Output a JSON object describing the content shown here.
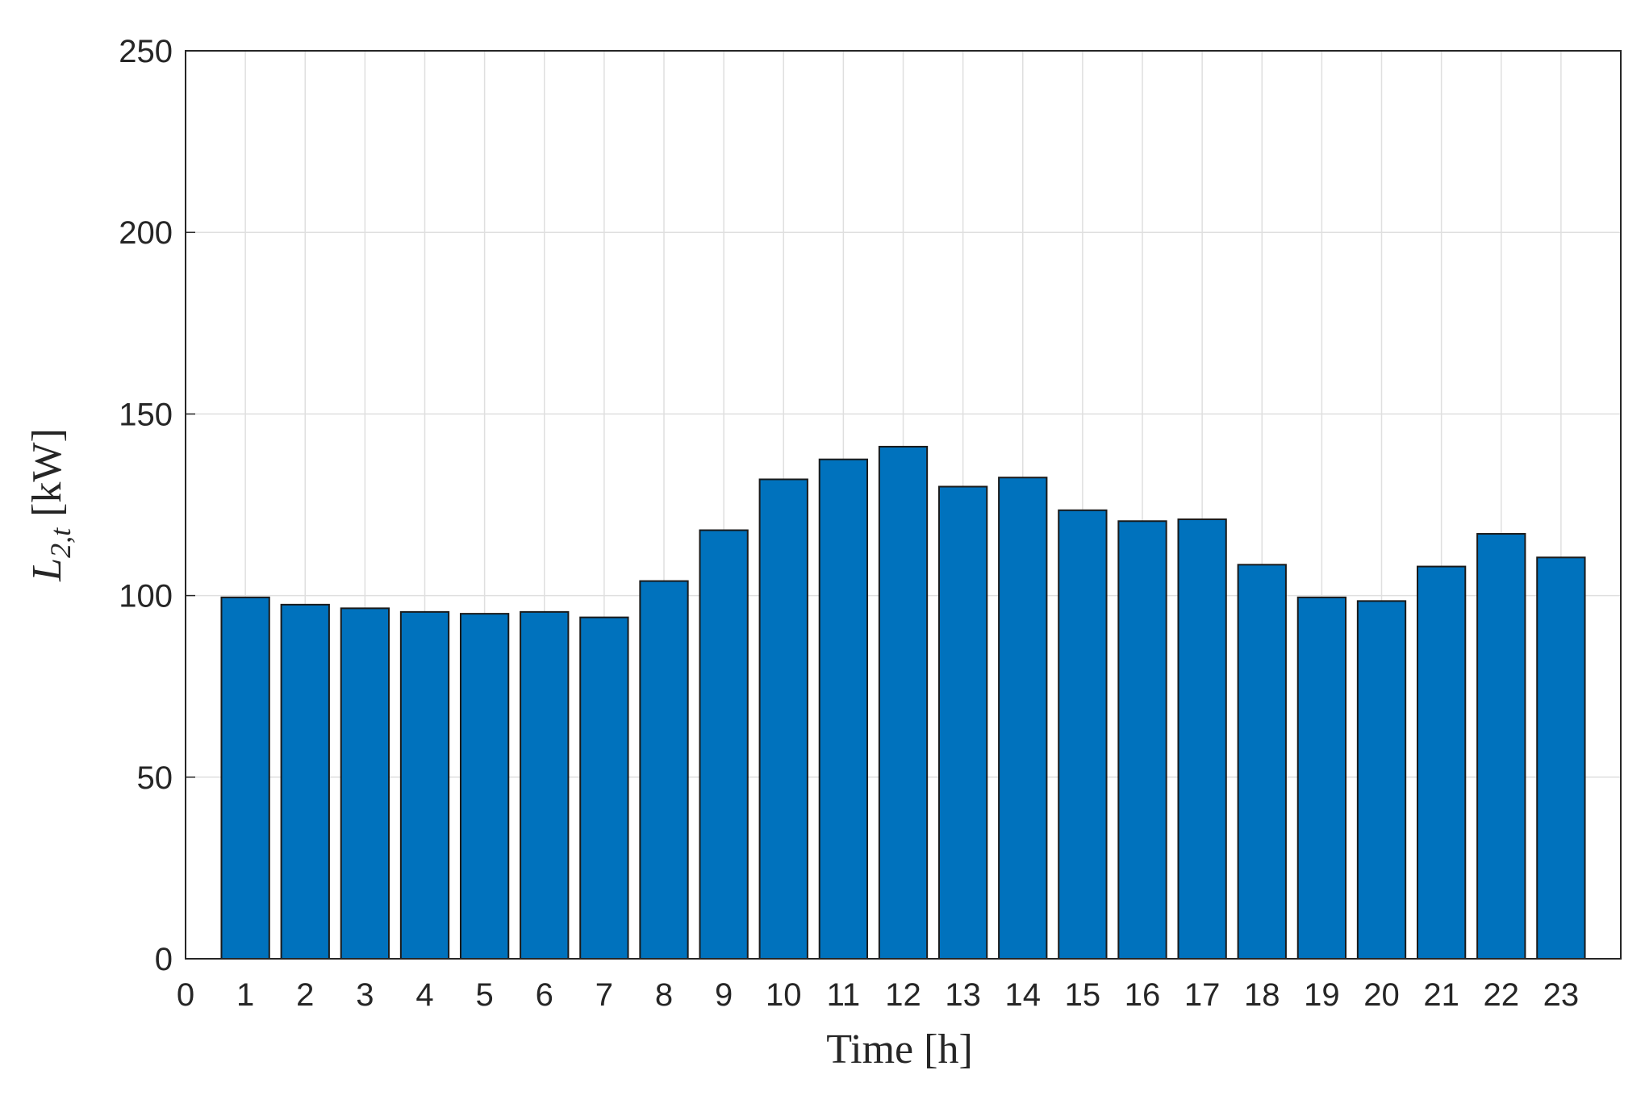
{
  "chart_data": {
    "type": "bar",
    "x": [
      1,
      2,
      3,
      4,
      5,
      6,
      7,
      8,
      9,
      10,
      11,
      12,
      13,
      14,
      15,
      16,
      17,
      18,
      19,
      20,
      21,
      22,
      23
    ],
    "values": [
      99.5,
      97.5,
      96.5,
      95.5,
      95,
      95.5,
      94,
      104,
      118,
      132,
      137.5,
      141,
      130,
      132.5,
      123.5,
      120.5,
      121,
      108.5,
      99.5,
      98.5,
      108,
      117,
      110.5
    ],
    "color": "#0072bd",
    "xlabel": "Time [h]",
    "ylabel": {
      "symbol": "L",
      "subscript": "2,t",
      "unit": "[kW]"
    },
    "xlim": [
      0,
      24
    ],
    "xticks": [
      0,
      1,
      2,
      3,
      4,
      5,
      6,
      7,
      8,
      9,
      10,
      11,
      12,
      13,
      14,
      15,
      16,
      17,
      18,
      19,
      20,
      21,
      22,
      23
    ],
    "ylim": [
      0,
      250
    ],
    "yticks": [
      0,
      50,
      100,
      150,
      200,
      250
    ],
    "bar_width": 0.8,
    "grid": true
  }
}
